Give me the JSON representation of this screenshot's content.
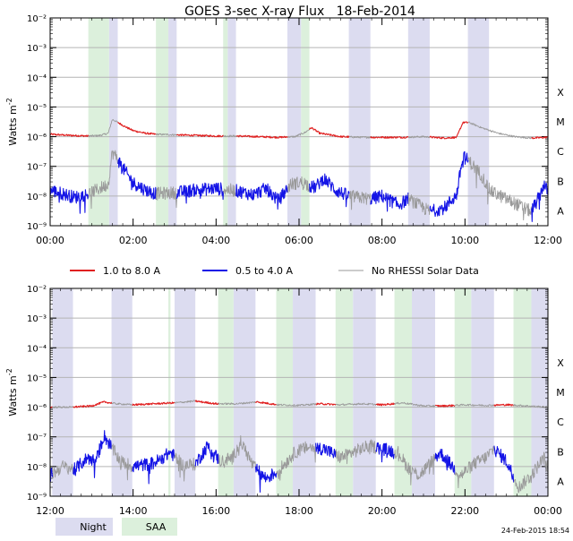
{
  "title": "GOES 3-sec X-ray Flux   18-Feb-2014",
  "stamp": "24-Feb-2015 18:54",
  "colors": {
    "long": "#e02020",
    "short": "#1414e6",
    "gap": "#9a9a9a",
    "night": "#dcdcf0",
    "saa": "#dcf0dc",
    "grid": "#b4b4b4",
    "axis": "#000000",
    "bg": "#ffffff"
  },
  "legend": {
    "long_label": "1.0 to 8.0 A",
    "short_label": "0.5 to 4.0 A",
    "gap_label": "No RHESSI Solar Data",
    "night_label": "Night",
    "saa_label": "SAA"
  },
  "chart_data": [
    {
      "type": "line",
      "panel": "top",
      "ylabel": "Watts m^-2",
      "yscale": "log",
      "ylim": [
        1e-09,
        0.01
      ],
      "xlim_hours": [
        0,
        12
      ],
      "x_ticks": [
        "00:00",
        "02:00",
        "04:00",
        "06:00",
        "08:00",
        "10:00",
        "12:00"
      ],
      "y_tick_exponents": [
        -2,
        -3,
        -4,
        -5,
        -6,
        -7,
        -8,
        -9
      ],
      "class_labels": [
        "X",
        "M",
        "C",
        "B",
        "A"
      ],
      "night_hours": [
        [
          1.42,
          1.63
        ],
        [
          2.85,
          3.05
        ],
        [
          4.28,
          4.48
        ],
        [
          5.72,
          6.05
        ],
        [
          7.2,
          7.72
        ],
        [
          8.63,
          9.15
        ],
        [
          10.07,
          10.58
        ]
      ],
      "saa_hours": [
        [
          0.92,
          1.42
        ],
        [
          2.55,
          2.85
        ],
        [
          4.17,
          4.28
        ],
        [
          6.05,
          6.25
        ]
      ],
      "gap_hours": [
        [
          0.92,
          1.63
        ],
        [
          2.55,
          3.05
        ],
        [
          4.17,
          4.48
        ],
        [
          5.72,
          6.25
        ],
        [
          7.2,
          7.72
        ],
        [
          8.63,
          9.15
        ],
        [
          10.07,
          11.6
        ]
      ],
      "series": [
        {
          "name": "1.0 to 8.0 A",
          "points": [
            [
              0.0,
              1.2e-06
            ],
            [
              0.5,
              1.1e-06
            ],
            [
              0.92,
              1.05e-06
            ],
            [
              1.2,
              1.1e-06
            ],
            [
              1.4,
              1.3e-06
            ],
            [
              1.5,
              3.8e-06
            ],
            [
              1.6,
              3.2e-06
            ],
            [
              1.8,
              2.2e-06
            ],
            [
              2.0,
              1.6e-06
            ],
            [
              2.3,
              1.3e-06
            ],
            [
              2.55,
              1.2e-06
            ],
            [
              3.05,
              1.15e-06
            ],
            [
              3.5,
              1.1e-06
            ],
            [
              4.0,
              1.05e-06
            ],
            [
              4.5,
              1.05e-06
            ],
            [
              5.0,
              1e-06
            ],
            [
              5.5,
              9.5e-07
            ],
            [
              5.9,
              1e-06
            ],
            [
              6.15,
              1.4e-06
            ],
            [
              6.3,
              2e-06
            ],
            [
              6.5,
              1.3e-06
            ],
            [
              7.0,
              1e-06
            ],
            [
              7.5,
              9.5e-07
            ],
            [
              8.0,
              9.5e-07
            ],
            [
              8.5,
              9.5e-07
            ],
            [
              9.0,
              1e-06
            ],
            [
              9.5,
              9e-07
            ],
            [
              9.8,
              9.5e-07
            ],
            [
              9.95,
              3e-06
            ],
            [
              10.1,
              3e-06
            ],
            [
              10.4,
              2e-06
            ],
            [
              10.8,
              1.3e-06
            ],
            [
              11.2,
              1e-06
            ],
            [
              11.6,
              9e-07
            ],
            [
              12.0,
              9.5e-07
            ]
          ]
        },
        {
          "name": "0.5 to 4.0 A",
          "points": [
            [
              0.0,
              1.6e-08
            ],
            [
              0.3,
              1.2e-08
            ],
            [
              0.6,
              9e-09
            ],
            [
              0.92,
              1.2e-08
            ],
            [
              1.2,
              1.8e-08
            ],
            [
              1.4,
              2.5e-08
            ],
            [
              1.5,
              3e-07
            ],
            [
              1.6,
              2e-07
            ],
            [
              1.8,
              7e-08
            ],
            [
              2.0,
              2.8e-08
            ],
            [
              2.3,
              1.6e-08
            ],
            [
              2.55,
              1.2e-08
            ],
            [
              3.05,
              1.3e-08
            ],
            [
              3.5,
              1.6e-08
            ],
            [
              4.0,
              1.8e-08
            ],
            [
              4.5,
              1.5e-08
            ],
            [
              4.9,
              1.1e-08
            ],
            [
              5.2,
              1.8e-08
            ],
            [
              5.5,
              7e-09
            ],
            [
              5.8,
              2.5e-08
            ],
            [
              6.1,
              3e-08
            ],
            [
              6.3,
              2e-08
            ],
            [
              6.4,
              2e-08
            ],
            [
              6.6,
              4e-08
            ],
            [
              6.9,
              1.5e-08
            ],
            [
              7.2,
              1e-08
            ],
            [
              7.72,
              8e-09
            ],
            [
              8.0,
              1e-08
            ],
            [
              8.4,
              5e-09
            ],
            [
              8.63,
              8e-09
            ],
            [
              9.15,
              3e-09
            ],
            [
              9.5,
              4e-09
            ],
            [
              9.8,
              1.1e-08
            ],
            [
              9.95,
              2.2e-07
            ],
            [
              10.1,
              1.5e-07
            ],
            [
              10.4,
              5e-08
            ],
            [
              10.6,
              1.5e-08
            ],
            [
              11.6,
              3e-09
            ],
            [
              11.8,
              1e-08
            ],
            [
              11.9,
              2.5e-08
            ],
            [
              12.0,
              1.3e-08
            ]
          ]
        }
      ]
    },
    {
      "type": "line",
      "panel": "bottom",
      "ylabel": "Watts m^-2",
      "yscale": "log",
      "ylim": [
        1e-09,
        0.01
      ],
      "xlim_hours": [
        12,
        24
      ],
      "x_ticks": [
        "12:00",
        "14:00",
        "16:00",
        "18:00",
        "20:00",
        "22:00",
        "00:00"
      ],
      "y_tick_exponents": [
        -2,
        -3,
        -4,
        -5,
        -6,
        -7,
        -8,
        -9
      ],
      "class_labels": [
        "X",
        "M",
        "C",
        "B",
        "A"
      ],
      "night_hours": [
        [
          12.05,
          12.55
        ],
        [
          13.48,
          13.98
        ],
        [
          15.0,
          15.5
        ],
        [
          16.42,
          16.95
        ],
        [
          17.85,
          18.4
        ],
        [
          19.3,
          19.85
        ],
        [
          20.72,
          21.28
        ],
        [
          22.15,
          22.7
        ],
        [
          23.6,
          24.0
        ]
      ],
      "saa_hours": [
        [
          16.05,
          16.42
        ],
        [
          17.45,
          17.85
        ],
        [
          18.88,
          19.3
        ],
        [
          20.3,
          20.72
        ],
        [
          21.75,
          22.15
        ],
        [
          23.17,
          23.6
        ],
        [
          14.85,
          14.9
        ]
      ],
      "gap_hours": [
        [
          12.05,
          12.55
        ],
        [
          13.48,
          13.98
        ],
        [
          15.0,
          15.5
        ],
        [
          16.05,
          16.95
        ],
        [
          17.45,
          18.4
        ],
        [
          18.88,
          19.85
        ],
        [
          20.3,
          21.28
        ],
        [
          21.75,
          22.7
        ],
        [
          23.17,
          24.0
        ]
      ],
      "series": [
        {
          "name": "1.0 to 8.0 A",
          "points": [
            [
              12.0,
              1e-06
            ],
            [
              12.5,
              1e-06
            ],
            [
              13.0,
              1.1e-06
            ],
            [
              13.3,
              1.5e-06
            ],
            [
              13.6,
              1.3e-06
            ],
            [
              14.0,
              1.2e-06
            ],
            [
              14.5,
              1.3e-06
            ],
            [
              15.0,
              1.4e-06
            ],
            [
              15.5,
              1.6e-06
            ],
            [
              16.0,
              1.3e-06
            ],
            [
              16.5,
              1.3e-06
            ],
            [
              17.0,
              1.5e-06
            ],
            [
              17.5,
              1.2e-06
            ],
            [
              18.0,
              1.15e-06
            ],
            [
              18.5,
              1.3e-06
            ],
            [
              19.0,
              1.2e-06
            ],
            [
              19.5,
              1.3e-06
            ],
            [
              20.0,
              1.2e-06
            ],
            [
              20.5,
              1.4e-06
            ],
            [
              21.0,
              1.1e-06
            ],
            [
              21.5,
              1.1e-06
            ],
            [
              22.0,
              1.2e-06
            ],
            [
              22.5,
              1.15e-06
            ],
            [
              23.0,
              1.2e-06
            ],
            [
              23.5,
              1.1e-06
            ],
            [
              24.0,
              1e-06
            ]
          ]
        },
        {
          "name": "0.5 to 4.0 A",
          "points": [
            [
              12.0,
              5e-09
            ],
            [
              12.3,
              1e-08
            ],
            [
              12.6,
              8e-09
            ],
            [
              12.9,
              2e-08
            ],
            [
              13.1,
              1.5e-08
            ],
            [
              13.3,
              1.1e-07
            ],
            [
              13.5,
              4e-08
            ],
            [
              13.7,
              1.5e-08
            ],
            [
              14.0,
              1e-08
            ],
            [
              14.5,
              1.3e-08
            ],
            [
              14.9,
              3e-08
            ],
            [
              15.2,
              1.1e-08
            ],
            [
              15.5,
              1.2e-08
            ],
            [
              15.8,
              5e-08
            ],
            [
              16.1,
              1.5e-08
            ],
            [
              16.4,
              2e-08
            ],
            [
              16.6,
              7e-08
            ],
            [
              16.9,
              1e-08
            ],
            [
              17.2,
              4e-09
            ],
            [
              17.5,
              7e-09
            ],
            [
              17.9,
              3e-08
            ],
            [
              18.2,
              4.5e-08
            ],
            [
              18.6,
              4e-08
            ],
            [
              19.0,
              2e-08
            ],
            [
              19.4,
              3.5e-08
            ],
            [
              19.7,
              5e-08
            ],
            [
              20.0,
              4e-08
            ],
            [
              20.4,
              3e-08
            ],
            [
              20.6,
              1e-08
            ],
            [
              20.9,
              5e-09
            ],
            [
              21.2,
              1.5e-08
            ],
            [
              21.4,
              3e-08
            ],
            [
              21.7,
              1e-08
            ],
            [
              21.9,
              5e-09
            ],
            [
              22.2,
              1.2e-08
            ],
            [
              22.5,
              2e-08
            ],
            [
              22.7,
              4e-08
            ],
            [
              23.0,
              1.5e-08
            ],
            [
              23.3,
              2e-09
            ],
            [
              23.6,
              5e-09
            ],
            [
              23.9,
              2e-08
            ],
            [
              24.0,
              8e-09
            ]
          ]
        }
      ]
    }
  ]
}
